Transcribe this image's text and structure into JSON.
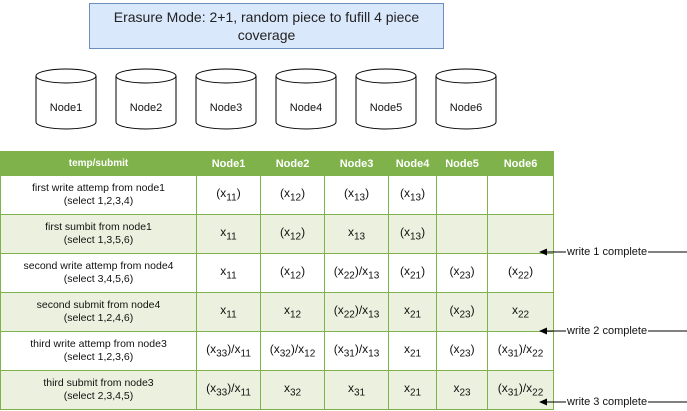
{
  "title_line1": "Erasure Mode: 2+1, random piece to fufill 4 piece",
  "title_line2": "coverage",
  "nodes": [
    "Node1",
    "Node2",
    "Node3",
    "Node4",
    "Node5",
    "Node6"
  ],
  "table": {
    "headers": [
      "temp/submit",
      "Node1",
      "Node2",
      "Node3",
      "Node4",
      "Node5",
      "Node6"
    ],
    "rows": [
      {
        "label1": "first write attemp from node1",
        "label2": "(select 1,2,3,4)",
        "cells": [
          "(x11)",
          "(x12)",
          "(x13)",
          "(x13)",
          "",
          ""
        ]
      },
      {
        "label1": "first sumbit from node1",
        "label2": "(select 1,3,5,6)",
        "cells": [
          "x11",
          "(x12)",
          "x13",
          "(x13)",
          "",
          ""
        ]
      },
      {
        "label1": "second write attemp from node4",
        "label2": "(select 3,4,5,6)",
        "cells": [
          "x11",
          "(x12)",
          "(x22)/x13",
          "(x21)",
          "(x23)",
          "(x22)"
        ]
      },
      {
        "label1": "second submit from node4",
        "label2": "(select 1,2,4,6)",
        "cells": [
          "x11",
          "x12",
          "(x22)/x13",
          "x21",
          "(x23)",
          "x22"
        ]
      },
      {
        "label1": "third write attemp from node3",
        "label2": "(select 1,2,3,6)",
        "cells": [
          "(x33)/x11",
          "(x32)/x12",
          "(x31)/x13",
          "x21",
          "(x23)",
          "(x31)/x22"
        ]
      },
      {
        "label1": "third submit from node3",
        "label2": "(select 2,3,4,5)",
        "cells": [
          "(x33)/x11",
          "x32",
          "x31",
          "x21",
          "x23",
          "(x31)/x22"
        ]
      }
    ]
  },
  "markers": [
    "write 1 complete",
    "write 2 complete",
    "write 3 complete"
  ],
  "colors": {
    "header_green": "#7fb24a",
    "row_alt": "#ebf1de",
    "title_fill": "#dae8fc",
    "title_border": "#6c8ebf"
  }
}
